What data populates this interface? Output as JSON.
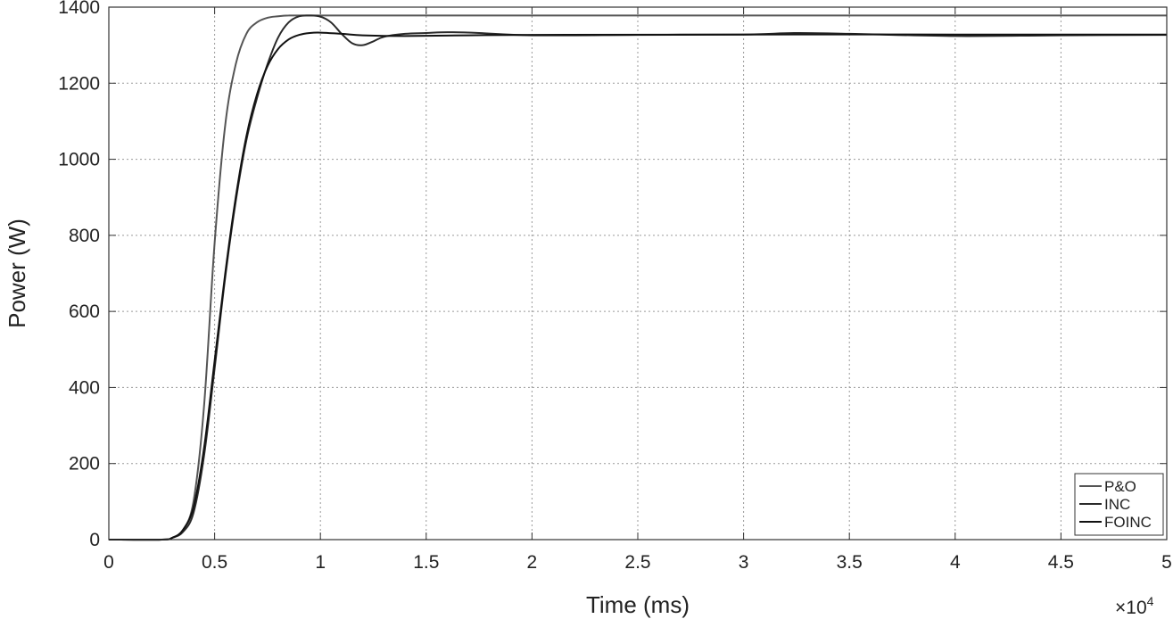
{
  "chart_data": {
    "type": "line",
    "title": "",
    "xlabel": "Time (ms)",
    "ylabel": "Power (W)",
    "x_multiplier_label": "×10",
    "x_multiplier_exponent": "4",
    "xlim": [
      0,
      5
    ],
    "ylim": [
      0,
      1400
    ],
    "xticks": [
      0,
      0.5,
      1,
      1.5,
      2,
      2.5,
      3,
      3.5,
      4,
      4.5,
      5
    ],
    "xtick_labels": [
      "0",
      "0.5",
      "1",
      "1.5",
      "2",
      "2.5",
      "3",
      "3.5",
      "4",
      "4.5",
      "5"
    ],
    "yticks": [
      0,
      200,
      400,
      600,
      800,
      1000,
      1200,
      1400
    ],
    "ytick_labels": [
      "0",
      "200",
      "400",
      "600",
      "800",
      "1000",
      "1200",
      "1400"
    ],
    "grid": true,
    "legend_position": "bottom-right",
    "series": [
      {
        "name": "P&O",
        "color": "#555555",
        "x": [
          0,
          0.25,
          0.3,
          0.35,
          0.4,
          0.45,
          0.5,
          0.55,
          0.6,
          0.65,
          0.7,
          0.75,
          0.8,
          0.85,
          0.9,
          1.0,
          1.2,
          1.5,
          2.0,
          3.0,
          4.0,
          5.0
        ],
        "y": [
          0,
          0,
          5,
          25,
          100,
          350,
          780,
          1090,
          1250,
          1330,
          1360,
          1372,
          1376,
          1378,
          1378,
          1378,
          1378,
          1378,
          1378,
          1378,
          1378,
          1378
        ]
      },
      {
        "name": "INC",
        "color": "#2a2a2a",
        "x": [
          0,
          0.25,
          0.3,
          0.35,
          0.4,
          0.45,
          0.5,
          0.55,
          0.6,
          0.65,
          0.7,
          0.75,
          0.8,
          0.85,
          0.9,
          0.95,
          1.0,
          1.05,
          1.1,
          1.15,
          1.2,
          1.25,
          1.3,
          1.4,
          1.5,
          1.6,
          1.75,
          2.0,
          2.5,
          3.0,
          3.25,
          3.5,
          4.0,
          4.5,
          5.0
        ],
        "y": [
          0,
          0,
          5,
          20,
          70,
          220,
          450,
          690,
          890,
          1050,
          1160,
          1250,
          1320,
          1360,
          1376,
          1378,
          1375,
          1360,
          1330,
          1305,
          1300,
          1310,
          1322,
          1330,
          1332,
          1334,
          1332,
          1326,
          1327,
          1328,
          1332,
          1330,
          1324,
          1326,
          1327
        ]
      },
      {
        "name": "FOINC",
        "color": "#111111",
        "x": [
          0,
          0.25,
          0.3,
          0.35,
          0.4,
          0.45,
          0.5,
          0.55,
          0.6,
          0.65,
          0.7,
          0.75,
          0.8,
          0.85,
          0.9,
          0.95,
          1.0,
          1.1,
          1.2,
          1.4,
          1.7,
          2.0,
          3.0,
          4.0,
          5.0
        ],
        "y": [
          0,
          0,
          5,
          25,
          85,
          240,
          470,
          700,
          900,
          1060,
          1170,
          1245,
          1290,
          1315,
          1327,
          1332,
          1333,
          1330,
          1326,
          1324,
          1326,
          1327,
          1328,
          1328,
          1328
        ]
      }
    ]
  }
}
